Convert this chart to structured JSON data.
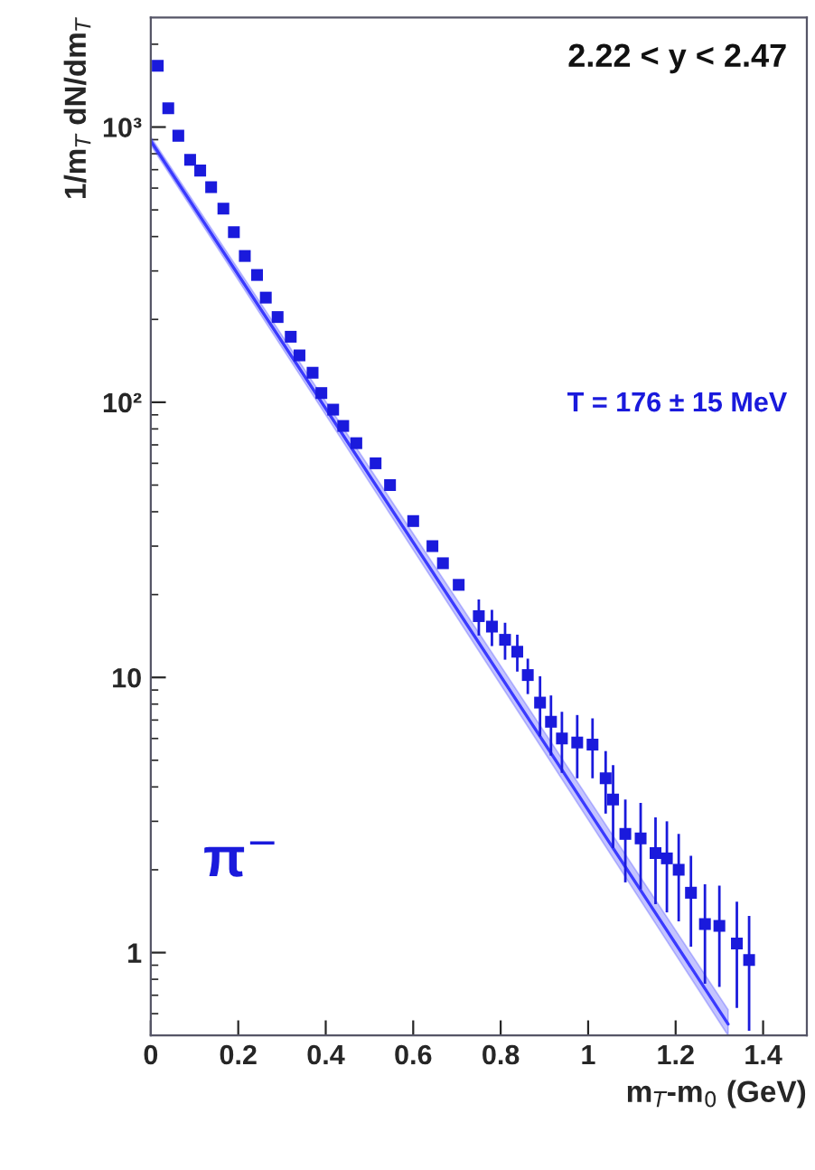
{
  "chart_data": {
    "type": "scatter",
    "xlabel": "m$_{T}$-m$_{0}$ (GeV)",
    "ylabel": "1/m$_{T}$ dN/dm$_{T}$",
    "annotations": [
      "2.22 < y < 2.47",
      "T = 176 ± 15 MeV",
      "π$^{−}$"
    ],
    "log": "y",
    "xlim": [
      0,
      1.5
    ],
    "ylim": [
      0.5,
      2500
    ],
    "xticks": [
      0,
      0.2,
      0.4,
      0.6,
      0.8,
      1,
      1.2,
      1.4
    ],
    "yticks": [
      1,
      10,
      {
        "value": 100,
        "label": "10²"
      },
      {
        "value": 1000,
        "label": "10³"
      }
    ],
    "grid": false,
    "legend": false,
    "series": [
      {
        "color": "#1a1adc",
        "marker": "square",
        "x": [
          0.016,
          0.04,
          0.063,
          0.09,
          0.113,
          0.138,
          0.166,
          0.19,
          0.215,
          0.243,
          0.263,
          0.29,
          0.32,
          0.34,
          0.37,
          0.39,
          0.417,
          0.44,
          0.47,
          0.514,
          0.547,
          0.6,
          0.644,
          0.668,
          0.704,
          0.75,
          0.78,
          0.81,
          0.838,
          0.862,
          0.89,
          0.915,
          0.94,
          0.975,
          1.01,
          1.04,
          1.057,
          1.085,
          1.12,
          1.154,
          1.18,
          1.207,
          1.235,
          1.267,
          1.3,
          1.34,
          1.368
        ],
        "values": [
          1670,
          1170,
          930,
          760,
          695,
          605,
          505,
          415,
          340,
          290,
          240,
          204,
          173,
          148,
          128,
          108,
          94,
          82,
          71,
          60,
          50,
          37,
          30,
          26,
          21.7,
          16.7,
          15.3,
          13.7,
          12.4,
          10.2,
          8.1,
          6.9,
          6.0,
          5.8,
          5.7,
          4.3,
          3.6,
          2.7,
          2.6,
          2.3,
          2.2,
          2.0,
          1.65,
          1.27,
          1.25,
          1.08,
          0.94
        ],
        "errors": [
          null,
          null,
          null,
          null,
          null,
          null,
          null,
          null,
          null,
          null,
          null,
          null,
          null,
          null,
          null,
          null,
          null,
          null,
          null,
          null,
          null,
          null,
          null,
          null,
          null,
          2.5,
          2.3,
          2.1,
          1.9,
          1.5,
          2.0,
          1.7,
          1.5,
          1.5,
          1.4,
          1.1,
          1.2,
          0.9,
          0.9,
          0.8,
          0.8,
          0.7,
          0.6,
          0.5,
          0.5,
          0.45,
          0.42
        ]
      },
      {
        "type": "line",
        "color": "#3a3aff",
        "x": [
          0,
          1.32
        ],
        "values": [
          890,
          0.55
        ],
        "lower": [
          860,
          0.5
        ],
        "upper": [
          920,
          0.62
        ]
      }
    ]
  }
}
